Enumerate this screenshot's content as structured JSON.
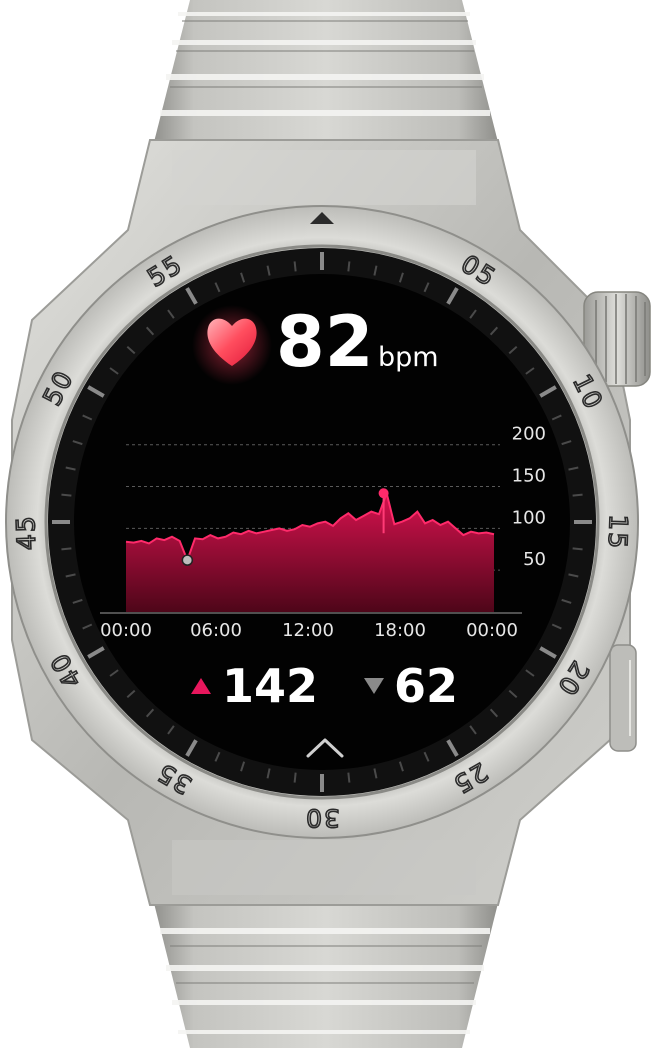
{
  "device": {
    "bezel_numbers": [
      "55",
      "05",
      "10",
      "15",
      "20",
      "25",
      "30",
      "35",
      "40",
      "45",
      "50"
    ],
    "colors": {
      "accent": "#e8175d",
      "chart_fill_top": "#d31150",
      "chart_fill_bottom": "#5a0820",
      "screen": "#050505",
      "metal": "#c9c9c5"
    }
  },
  "heart_rate": {
    "icon": "heart-icon",
    "value": "82",
    "unit": "bpm"
  },
  "chart_data": {
    "type": "area",
    "x_tick_labels": [
      "00:00",
      "06:00",
      "12:00",
      "18:00",
      "00:00"
    ],
    "y_tick_labels": [
      "200",
      "150",
      "100",
      "50"
    ],
    "xlim": [
      0,
      24
    ],
    "ylim": [
      0,
      200
    ],
    "grid": true,
    "series": [
      {
        "x": [
          0,
          0.5,
          1,
          1.5,
          2,
          2.5,
          3,
          3.5,
          4,
          4.5,
          5,
          5.5,
          6,
          6.5,
          7,
          7.5,
          8,
          8.5,
          9,
          9.5,
          10,
          10.5,
          11,
          11.5,
          12,
          12.5,
          13,
          13.5,
          14,
          14.5,
          15,
          15.5,
          16,
          16.5,
          17,
          17.5,
          18,
          18.5,
          19,
          19.5,
          20,
          20.5,
          21,
          21.5,
          22,
          22.5,
          23,
          23.5,
          24
        ],
        "values": [
          84,
          83,
          85,
          82,
          88,
          86,
          90,
          85,
          62,
          88,
          87,
          92,
          88,
          90,
          95,
          93,
          97,
          94,
          96,
          98,
          100,
          97,
          99,
          104,
          102,
          106,
          108,
          103,
          112,
          118,
          110,
          115,
          120,
          117,
          142,
          105,
          108,
          112,
          120,
          106,
          110,
          104,
          108,
          100,
          92,
          96,
          94,
          95,
          93
        ]
      }
    ],
    "annotations": {
      "max_point": {
        "x": 16.8,
        "y": 142
      },
      "min_point": {
        "x": 4.0,
        "y": 62
      }
    }
  },
  "stats": {
    "max": {
      "icon": "up-triangle-icon",
      "value": "142"
    },
    "min": {
      "icon": "down-triangle-icon",
      "value": "62"
    }
  },
  "nav": {
    "icon": "chevron-up-icon"
  }
}
